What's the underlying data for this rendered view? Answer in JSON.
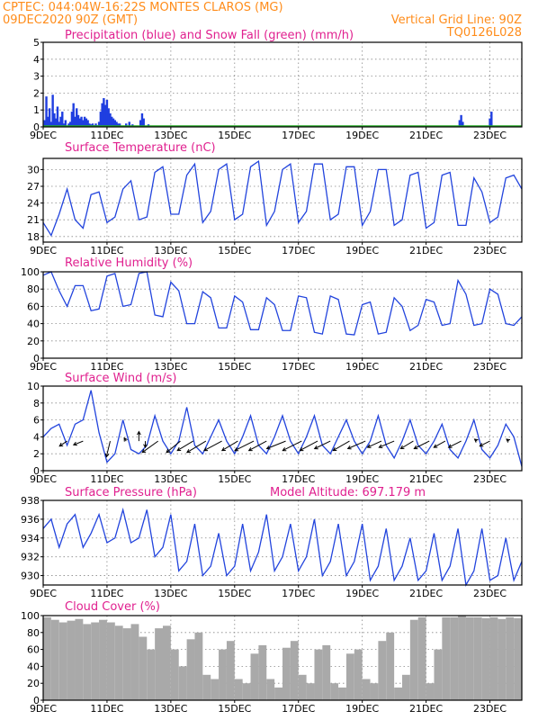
{
  "header": {
    "line1": "CPTEC:   044:04W-16:22S   MONTES CLAROS (MG)",
    "line2": "09DEC2020 90Z (GMT)",
    "grid_note": "Vertical Grid Line: 90Z",
    "run_id": "TQ0126L028"
  },
  "colors": {
    "header": "#ff8c1a",
    "title": "#e0208f",
    "line": "#2244dd",
    "precip": "#1f3ee0",
    "snow": "#22aa22",
    "cloud": "#a9a9a9"
  },
  "chart_data": [
    {
      "type": "bar",
      "title": "Precipitation (blue) and Snow Fall (green) (mm/h)",
      "xlim": [
        0,
        15
      ],
      "x_ticks": [
        0,
        2,
        4,
        6,
        8,
        10,
        12,
        14
      ],
      "x_tick_labels": [
        "9DEC",
        "11DEC",
        "13DEC",
        "15DEC",
        "17DEC",
        "19DEC",
        "21DEC",
        "23DEC"
      ],
      "ylim": [
        0,
        5
      ],
      "y_ticks": [
        0,
        1,
        2,
        3,
        4,
        5
      ],
      "series": [
        {
          "name": "Precipitation",
          "x": [
            0.05,
            0.1,
            0.15,
            0.2,
            0.25,
            0.3,
            0.35,
            0.4,
            0.45,
            0.5,
            0.55,
            0.6,
            0.65,
            0.7,
            0.8,
            0.85,
            0.9,
            0.95,
            1.0,
            1.05,
            1.1,
            1.15,
            1.2,
            1.25,
            1.3,
            1.35,
            1.4,
            1.45,
            1.5,
            1.55,
            1.6,
            1.65,
            1.7,
            1.75,
            1.8,
            1.85,
            1.9,
            1.95,
            2.0,
            2.05,
            2.1,
            2.15,
            2.2,
            2.25,
            2.3,
            2.35,
            2.4,
            2.6,
            2.7,
            2.8,
            3.05,
            3.1,
            3.15,
            3.3,
            13.05,
            13.1,
            13.15,
            14.0,
            14.05
          ],
          "values": [
            0.4,
            1.8,
            0.6,
            1.1,
            0.3,
            1.9,
            0.8,
            0.5,
            1.2,
            0.3,
            0.6,
            0.9,
            0.2,
            0.4,
            0.2,
            0.3,
            0.9,
            1.4,
            0.6,
            1.1,
            0.7,
            0.5,
            0.6,
            0.4,
            0.6,
            0.5,
            0.4,
            0.2,
            0.15,
            0.2,
            0.1,
            0.2,
            0.1,
            0.3,
            0.9,
            1.4,
            1.7,
            1.3,
            1.6,
            1.1,
            0.8,
            0.6,
            0.5,
            0.4,
            0.3,
            0.2,
            0.2,
            0.2,
            0.3,
            0.15,
            0.4,
            0.8,
            0.5,
            0.15,
            0.4,
            0.7,
            0.3,
            0.5,
            0.9
          ]
        },
        {
          "name": "Snow Fall",
          "x": [],
          "values": []
        }
      ]
    },
    {
      "type": "line",
      "title": "Surface Temperature (nC)",
      "xlim": [
        0,
        15
      ],
      "x_ticks": [
        0,
        2,
        4,
        6,
        8,
        10,
        12,
        14
      ],
      "x_tick_labels": [
        "9DEC",
        "11DEC",
        "13DEC",
        "15DEC",
        "17DEC",
        "19DEC",
        "21DEC",
        "23DEC"
      ],
      "ylim": [
        17,
        32
      ],
      "y_ticks": [
        18,
        21,
        24,
        27,
        30
      ],
      "x": [
        0.0,
        0.25,
        0.5,
        0.75,
        1.0,
        1.25,
        1.5,
        1.75,
        2.0,
        2.25,
        2.5,
        2.75,
        3.0,
        3.25,
        3.5,
        3.75,
        4.0,
        4.25,
        4.5,
        4.75,
        5.0,
        5.25,
        5.5,
        5.75,
        6.0,
        6.25,
        6.5,
        6.75,
        7.0,
        7.25,
        7.5,
        7.75,
        8.0,
        8.25,
        8.5,
        8.75,
        9.0,
        9.25,
        9.5,
        9.75,
        10.0,
        10.25,
        10.5,
        10.75,
        11.0,
        11.25,
        11.5,
        11.75,
        12.0,
        12.25,
        12.5,
        12.75,
        13.0,
        13.25,
        13.5,
        13.75,
        14.0,
        14.25,
        14.5,
        14.75,
        15.0
      ],
      "values": [
        20.5,
        18.2,
        22.0,
        26.5,
        21.0,
        19.5,
        25.5,
        26.0,
        20.5,
        21.5,
        26.5,
        28.0,
        21.0,
        21.5,
        29.5,
        30.5,
        22.0,
        22.0,
        29.0,
        31.0,
        20.5,
        22.5,
        30.0,
        31.0,
        21.0,
        22.0,
        30.5,
        31.5,
        20.0,
        22.5,
        30.0,
        31.0,
        20.5,
        22.5,
        31.0,
        31.0,
        21.0,
        22.0,
        30.5,
        30.5,
        20.0,
        22.5,
        30.0,
        30.0,
        20.0,
        21.0,
        29.0,
        29.5,
        19.5,
        20.5,
        29.0,
        29.5,
        20.0,
        20.0,
        28.5,
        26.0,
        20.5,
        21.5,
        28.5,
        29.0,
        26.5
      ]
    },
    {
      "type": "line",
      "title": "Relative Humidity (%)",
      "xlim": [
        0,
        15
      ],
      "x_ticks": [
        0,
        2,
        4,
        6,
        8,
        10,
        12,
        14
      ],
      "x_tick_labels": [
        "9DEC",
        "11DEC",
        "13DEC",
        "15DEC",
        "17DEC",
        "19DEC",
        "21DEC",
        "23DEC"
      ],
      "ylim": [
        0,
        100
      ],
      "y_ticks": [
        0,
        20,
        40,
        60,
        80,
        100
      ],
      "x": [
        0.0,
        0.25,
        0.5,
        0.75,
        1.0,
        1.25,
        1.5,
        1.75,
        2.0,
        2.25,
        2.5,
        2.75,
        3.0,
        3.25,
        3.5,
        3.75,
        4.0,
        4.25,
        4.5,
        4.75,
        5.0,
        5.25,
        5.5,
        5.75,
        6.0,
        6.25,
        6.5,
        6.75,
        7.0,
        7.25,
        7.5,
        7.75,
        8.0,
        8.25,
        8.5,
        8.75,
        9.0,
        9.25,
        9.5,
        9.75,
        10.0,
        10.25,
        10.5,
        10.75,
        11.0,
        11.25,
        11.5,
        11.75,
        12.0,
        12.25,
        12.5,
        12.75,
        13.0,
        13.25,
        13.5,
        13.75,
        14.0,
        14.25,
        14.5,
        14.75,
        15.0
      ],
      "values": [
        96,
        100,
        78,
        60,
        84,
        84,
        55,
        57,
        95,
        98,
        60,
        62,
        98,
        100,
        50,
        48,
        88,
        78,
        40,
        40,
        77,
        70,
        35,
        35,
        72,
        65,
        33,
        33,
        70,
        62,
        32,
        32,
        72,
        70,
        30,
        28,
        72,
        68,
        28,
        27,
        62,
        65,
        28,
        30,
        70,
        60,
        32,
        38,
        68,
        65,
        38,
        40,
        90,
        74,
        38,
        40,
        80,
        74,
        40,
        38,
        48
      ]
    },
    {
      "type": "line",
      "title": "Surface Wind (m/s)",
      "xlim": [
        0,
        15
      ],
      "x_ticks": [
        0,
        2,
        4,
        6,
        8,
        10,
        12,
        14
      ],
      "x_tick_labels": [
        "9DEC",
        "11DEC",
        "13DEC",
        "15DEC",
        "17DEC",
        "19DEC",
        "21DEC",
        "23DEC"
      ],
      "ylim": [
        0,
        10
      ],
      "y_ticks": [
        0,
        2,
        4,
        6,
        8,
        10
      ],
      "x": [
        0.0,
        0.25,
        0.5,
        0.75,
        1.0,
        1.25,
        1.5,
        1.75,
        2.0,
        2.25,
        2.5,
        2.75,
        3.0,
        3.25,
        3.5,
        3.75,
        4.0,
        4.25,
        4.5,
        4.75,
        5.0,
        5.25,
        5.5,
        5.75,
        6.0,
        6.25,
        6.5,
        6.75,
        7.0,
        7.25,
        7.5,
        7.75,
        8.0,
        8.25,
        8.5,
        8.75,
        9.0,
        9.25,
        9.5,
        9.75,
        10.0,
        10.25,
        10.5,
        10.75,
        11.0,
        11.25,
        11.5,
        11.75,
        12.0,
        12.25,
        12.5,
        12.75,
        13.0,
        13.25,
        13.5,
        13.75,
        14.0,
        14.25,
        14.5,
        14.75,
        15.0
      ],
      "values": [
        4.0,
        5.0,
        5.5,
        3.0,
        5.5,
        6.0,
        9.5,
        4.5,
        1.0,
        2.0,
        6.0,
        2.5,
        2.0,
        3.0,
        6.5,
        3.5,
        2.0,
        3.5,
        7.5,
        3.0,
        2.0,
        4.0,
        6.0,
        3.5,
        2.0,
        4.0,
        6.5,
        3.0,
        2.0,
        4.0,
        6.5,
        3.5,
        2.0,
        4.0,
        6.5,
        3.0,
        2.0,
        4.0,
        6.0,
        3.5,
        2.0,
        3.5,
        6.5,
        3.0,
        1.5,
        3.5,
        6.0,
        3.0,
        2.0,
        3.5,
        5.5,
        2.5,
        1.5,
        3.5,
        6.0,
        2.5,
        1.5,
        3.0,
        5.5,
        4.0,
        0.5
      ],
      "wind_vectors": {
        "x": [
          0.75,
          1.25,
          2.1,
          2.6,
          3.0,
          3.2,
          3.6,
          4.3,
          4.7,
          5.1,
          5.6,
          6.1,
          6.6,
          7.0,
          7.6,
          8.1,
          8.6,
          9.0,
          9.6,
          10.1,
          10.6,
          11.0,
          11.6,
          12.1,
          12.6,
          13.1,
          13.6,
          14.0,
          14.6
        ],
        "u": [
          -1.2,
          -1.5,
          -0.6,
          -0.3,
          0.0,
          0.0,
          -2.5,
          -2.2,
          -2.5,
          -3.0,
          -2.8,
          -2.5,
          -3.0,
          -2.8,
          -3.0,
          -3.0,
          -2.8,
          -2.5,
          -2.6,
          -2.8,
          -2.2,
          -2.4,
          -2.0,
          -2.4,
          -1.8,
          -2.0,
          -0.4,
          -1.6,
          -0.4
        ],
        "v": [
          -0.8,
          -0.6,
          -2.5,
          0.5,
          1.5,
          -1.0,
          -1.8,
          -1.8,
          -1.5,
          -1.8,
          -1.5,
          -1.5,
          -1.5,
          -1.5,
          -1.2,
          -1.5,
          -1.5,
          -1.2,
          -1.5,
          -1.2,
          -1.0,
          -1.0,
          -1.2,
          -1.2,
          -1.0,
          -1.0,
          0.3,
          -0.8,
          0.3
        ]
      }
    },
    {
      "type": "line",
      "title": "Surface Pressure (hPa)",
      "annotation": "Model Altitude: 697.179 m",
      "xlim": [
        0,
        15
      ],
      "x_ticks": [
        0,
        2,
        4,
        6,
        8,
        10,
        12,
        14
      ],
      "x_tick_labels": [
        "9DEC",
        "11DEC",
        "13DEC",
        "15DEC",
        "17DEC",
        "19DEC",
        "21DEC",
        "23DEC"
      ],
      "ylim": [
        929,
        938
      ],
      "y_ticks": [
        930,
        932,
        934,
        936,
        938
      ],
      "x": [
        0.0,
        0.25,
        0.5,
        0.75,
        1.0,
        1.25,
        1.5,
        1.75,
        2.0,
        2.25,
        2.5,
        2.75,
        3.0,
        3.25,
        3.5,
        3.75,
        4.0,
        4.25,
        4.5,
        4.75,
        5.0,
        5.25,
        5.5,
        5.75,
        6.0,
        6.25,
        6.5,
        6.75,
        7.0,
        7.25,
        7.5,
        7.75,
        8.0,
        8.25,
        8.5,
        8.75,
        9.0,
        9.25,
        9.5,
        9.75,
        10.0,
        10.25,
        10.5,
        10.75,
        11.0,
        11.25,
        11.5,
        11.75,
        12.0,
        12.25,
        12.5,
        12.75,
        13.0,
        13.25,
        13.5,
        13.75,
        14.0,
        14.25,
        14.5,
        14.75,
        15.0
      ],
      "values": [
        935.0,
        936.0,
        933.0,
        935.5,
        936.5,
        933.0,
        934.5,
        936.5,
        933.5,
        934.0,
        937.0,
        933.5,
        934.0,
        937.0,
        932.0,
        933.0,
        936.5,
        930.5,
        931.5,
        935.5,
        930.0,
        931.0,
        934.5,
        930.0,
        931.0,
        935.5,
        930.5,
        932.5,
        936.5,
        930.5,
        932.0,
        935.5,
        930.5,
        932.0,
        936.0,
        930.0,
        931.5,
        935.5,
        930.0,
        931.5,
        935.5,
        929.5,
        931.0,
        935.0,
        929.5,
        931.0,
        934.0,
        929.5,
        930.5,
        934.5,
        929.5,
        931.0,
        935.0,
        929.0,
        930.5,
        935.0,
        929.5,
        930.0,
        934.0,
        929.5,
        931.5
      ]
    },
    {
      "type": "bar",
      "title": "Cloud Cover (%)",
      "xlim": [
        0,
        15
      ],
      "x_ticks": [
        0,
        2,
        4,
        6,
        8,
        10,
        12,
        14
      ],
      "x_tick_labels": [
        "9DEC",
        "11DEC",
        "13DEC",
        "15DEC",
        "17DEC",
        "19DEC",
        "21DEC",
        "23DEC"
      ],
      "ylim": [
        0,
        100
      ],
      "y_ticks": [
        0,
        20,
        40,
        60,
        80,
        100
      ],
      "x": [
        0.0,
        0.25,
        0.5,
        0.75,
        1.0,
        1.25,
        1.5,
        1.75,
        2.0,
        2.25,
        2.5,
        2.75,
        3.0,
        3.25,
        3.5,
        3.75,
        4.0,
        4.25,
        4.5,
        4.75,
        5.0,
        5.25,
        5.5,
        5.75,
        6.0,
        6.25,
        6.5,
        6.75,
        7.0,
        7.25,
        7.5,
        7.75,
        8.0,
        8.25,
        8.5,
        8.75,
        9.0,
        9.25,
        9.5,
        9.75,
        10.0,
        10.25,
        10.5,
        10.75,
        11.0,
        11.25,
        11.5,
        11.75,
        12.0,
        12.25,
        12.5,
        12.75,
        13.0,
        13.25,
        13.5,
        13.75,
        14.0,
        14.25,
        14.5,
        14.75
      ],
      "values": [
        98,
        95,
        92,
        94,
        96,
        90,
        92,
        95,
        92,
        88,
        85,
        90,
        75,
        60,
        85,
        88,
        60,
        40,
        72,
        80,
        30,
        25,
        60,
        70,
        25,
        20,
        55,
        65,
        25,
        15,
        62,
        70,
        30,
        20,
        60,
        65,
        20,
        15,
        55,
        60,
        25,
        20,
        70,
        80,
        15,
        30,
        95,
        98,
        20,
        60,
        98,
        98,
        100,
        98,
        98,
        97,
        98,
        96,
        98,
        97
      ]
    }
  ]
}
